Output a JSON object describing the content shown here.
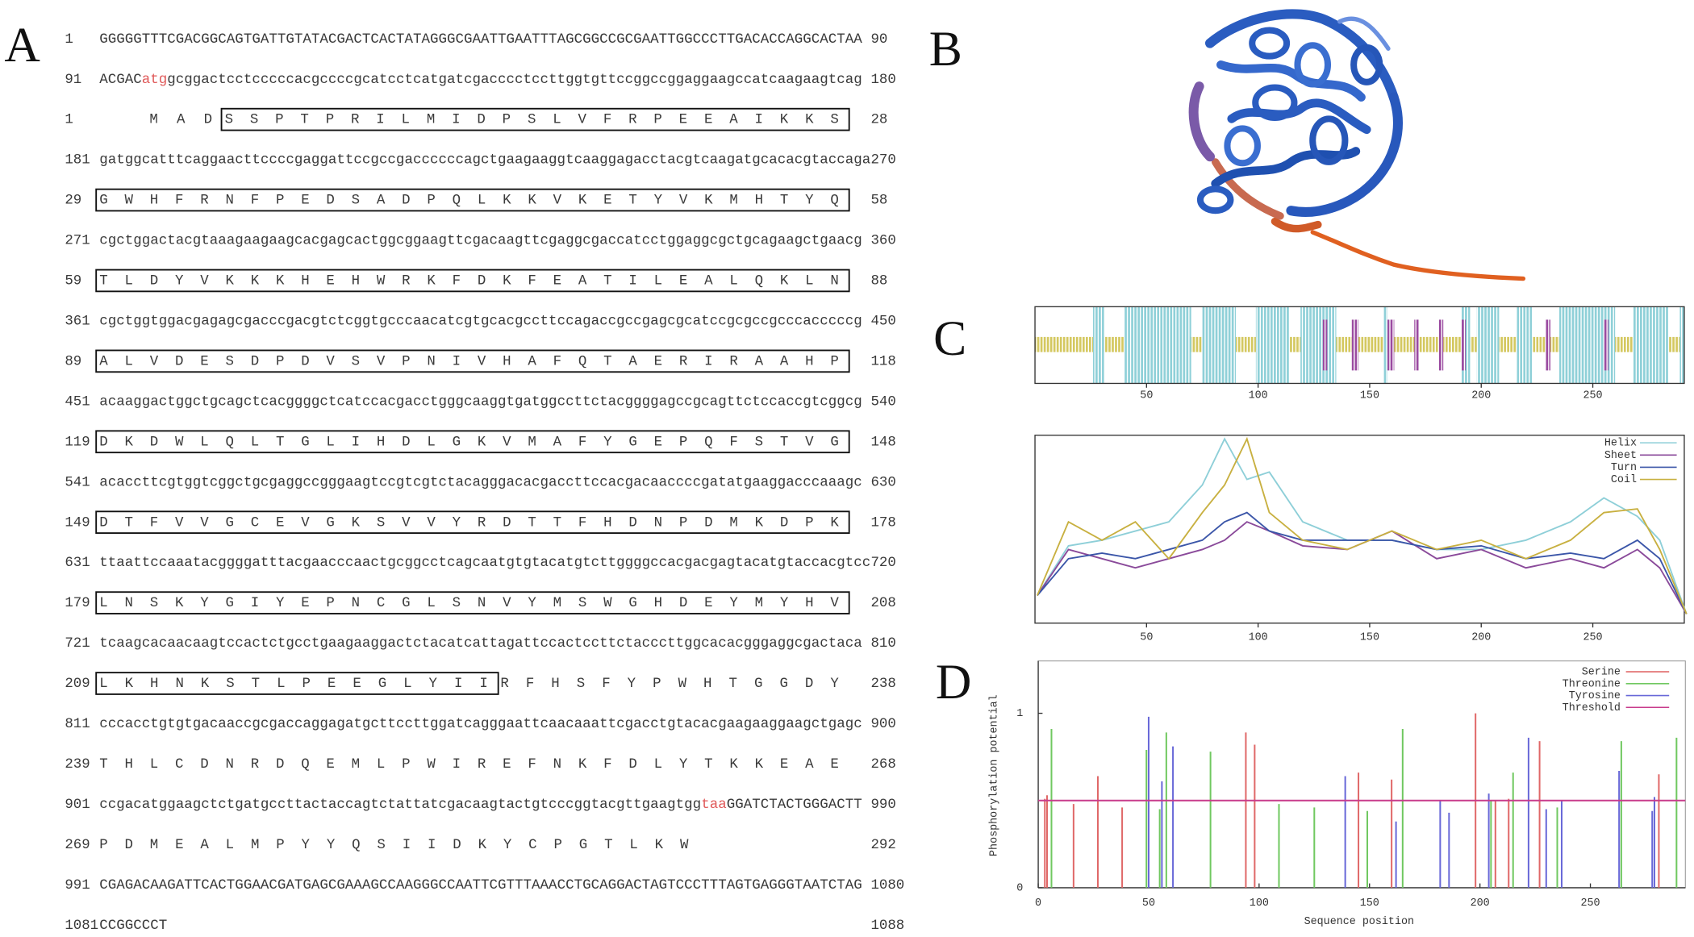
{
  "panel_labels": {
    "a": "A",
    "b": "B",
    "c": "C",
    "d": "D"
  },
  "sequence": {
    "lines": [
      {
        "start": 1,
        "parts": [
          {
            "text": "GGGGGTTTCGACGGCAGTGATTGTATACGACTCACTATAGGGCGAATTGAATTTAGCGGCCGCGAATTGGCCCTTGACACCAGGCACTAA"
          }
        ],
        "end": 90
      },
      {
        "start": 91,
        "parts": [
          {
            "text": "ACGAC"
          },
          {
            "text": "atg",
            "color": "#e05a5a"
          },
          {
            "text": "gcggactcctcccccacgccccgcatcctcatgatcgacccctccttggtgttccggccggaggaagccatcaagaagtcag"
          }
        ],
        "end": 180
      },
      {
        "start": 1,
        "pre": "M A D",
        "boxed": "S S P T P R I L M I D P S L V F R P E E A I K K S",
        "end": 28
      },
      {
        "start": 181,
        "parts": [
          {
            "text": "gatggcatttcaggaacttccccgaggattccgccgaccccccagctgaagaaggtcaaggagacctacgtcaagatgcacacgtaccaga"
          }
        ],
        "end": 270
      },
      {
        "start": 29,
        "boxed": "G W H F R N F P E D S A D P Q L K K V K E T Y V K M H T Y Q",
        "end": 58
      },
      {
        "start": 271,
        "parts": [
          {
            "text": "cgctggactacgtaaagaagaagcacgagcactggcggaagttcgacaagttcgaggcgaccatcctggaggcgctgcagaagctgaacg"
          }
        ],
        "end": 360
      },
      {
        "start": 59,
        "boxed": "T L D Y V K K K H E H W R K F D K F E A T I L E A L Q K L N",
        "end": 88
      },
      {
        "start": 361,
        "parts": [
          {
            "text": "cgctggtggacgagagcgacccgacgtctcggtgcccaacatcgtgcacgccttccagaccgccgagcgcatccgcgccgcccacccccg"
          }
        ],
        "end": 450
      },
      {
        "start": 89,
        "boxed": "A L V D E S D P D V S V P N I V H A F Q T A E R I R A A H P",
        "end": 118
      },
      {
        "start": 451,
        "parts": [
          {
            "text": "acaaggactggctgcagctcacggggctcatccacgacctgggcaaggtgatggccttctacggggagccgcagttctccaccgtcggcg"
          }
        ],
        "end": 540
      },
      {
        "start": 119,
        "boxed": "D K D W L Q L T G L I H D L G K V M A F Y G E P Q F S T V G",
        "end": 148
      },
      {
        "start": 541,
        "parts": [
          {
            "text": "acaccttcgtggtcggctgcgaggccgggaagtccgtcgtctacagggacacgaccttccacgacaaccccgatatgaaggacccaaagc"
          }
        ],
        "end": 630
      },
      {
        "start": 149,
        "boxed": "D T F V V G C E V G K S V V Y R D T T F H D N P D M K D P K",
        "end": 178
      },
      {
        "start": 631,
        "parts": [
          {
            "text": "ttaattccaaatacggggatttacgaacccaactgcggcctcagcaatgtgtacatgtcttggggccacgacgagtacatgtaccacgtcc"
          }
        ],
        "end": 720
      },
      {
        "start": 179,
        "boxed": "L N S K Y G I Y E P N C G L S N V Y M S W G H D E Y M Y H V",
        "end": 208
      },
      {
        "start": 721,
        "parts": [
          {
            "text": "tcaagcacaacaagtccactctgcctgaagaaggactctacatcattagattccactccttctacccttggcacacgggaggcgactaca"
          }
        ],
        "end": 810
      },
      {
        "start": 209,
        "boxed": "L K H N K S T L P E E G L Y I I",
        "post": "R F H S F Y P W H T G G D Y",
        "end": 238
      },
      {
        "start": 811,
        "parts": [
          {
            "text": "cccacctgtgtgacaaccgcgaccaggagatgcttccttggatcagggaattcaacaaattcgacctgtacacgaagaaggaagctgagc"
          }
        ],
        "end": 900
      },
      {
        "start": 239,
        "pre": "T H L C D N R D Q E M L P W I R E F N K F D L Y T K K E A E",
        "end": 268
      },
      {
        "start": 901,
        "parts": [
          {
            "text": "ccgacatggaagctctgatgccttactaccagtctattatcgacaagtactgtcccggtacgttgaagtgg"
          },
          {
            "text": "taa",
            "color": "#e05a5a"
          },
          {
            "text": "GGATCTACTGGGACTT"
          }
        ],
        "end": 990
      },
      {
        "start": 269,
        "pre": "P D M E A L M P Y Y Q S I I D K Y C P G T L K W",
        "end": 292
      },
      {
        "start": 991,
        "parts": [
          {
            "text": "CGAGACAAGATTCACTGGAACGATGAGCGAAAGCCAAGGGCCAATTCGTTTAAACCTGCAGGACTAGTCCCTTTAGTGAGGGTAATCTAG"
          }
        ],
        "end": 1080
      },
      {
        "start": 1081,
        "parts": [
          {
            "text": "CCGGCCCT"
          }
        ],
        "end": 1088
      }
    ]
  },
  "chart_data": [
    {
      "type": "track",
      "xlim": [
        0,
        291
      ],
      "xticks": [
        50,
        100,
        150,
        200,
        250
      ],
      "helix_color": "#8fd0d8",
      "sheet_color": "#9a4aa0",
      "coil_color": "#d4c860",
      "helix_ranges": [
        [
          26,
          31
        ],
        [
          40,
          70
        ],
        [
          75,
          90
        ],
        [
          99,
          114
        ],
        [
          119,
          135
        ],
        [
          156,
          158
        ],
        [
          191,
          195
        ],
        [
          198,
          208
        ],
        [
          216,
          223
        ],
        [
          235,
          260
        ],
        [
          268,
          284
        ],
        [
          289,
          291
        ]
      ],
      "sheet_ranges": [
        [
          129,
          131
        ],
        [
          142,
          145
        ],
        [
          158,
          161
        ],
        [
          170,
          172
        ],
        [
          181,
          183
        ],
        [
          191,
          193
        ],
        [
          229,
          231
        ],
        [
          255,
          257
        ]
      ]
    },
    {
      "type": "line",
      "xlim": [
        0,
        291
      ],
      "ylim": [
        0,
        1.02
      ],
      "xticks": [
        50,
        100,
        150,
        200,
        250
      ],
      "legend": "upper right",
      "x": [
        1,
        15,
        30,
        45,
        60,
        75,
        85,
        95,
        105,
        120,
        140,
        160,
        180,
        200,
        220,
        240,
        255,
        270,
        280,
        292
      ],
      "series": [
        {
          "name": "Helix",
          "color": "#8ecfd8",
          "values": [
            0.15,
            0.42,
            0.45,
            0.5,
            0.55,
            0.75,
            1.0,
            0.78,
            0.82,
            0.55,
            0.45,
            0.45,
            0.4,
            0.4,
            0.45,
            0.55,
            0.68,
            0.58,
            0.45,
            0.05
          ]
        },
        {
          "name": "Sheet",
          "color": "#8a4a9a",
          "values": [
            0.15,
            0.4,
            0.35,
            0.3,
            0.35,
            0.4,
            0.45,
            0.55,
            0.5,
            0.42,
            0.4,
            0.5,
            0.35,
            0.4,
            0.3,
            0.35,
            0.3,
            0.4,
            0.3,
            0.05
          ]
        },
        {
          "name": "Turn",
          "color": "#3a55a8",
          "values": [
            0.15,
            0.35,
            0.38,
            0.35,
            0.4,
            0.45,
            0.55,
            0.6,
            0.5,
            0.45,
            0.45,
            0.45,
            0.4,
            0.42,
            0.35,
            0.38,
            0.35,
            0.45,
            0.35,
            0.05
          ]
        },
        {
          "name": "Coil",
          "color": "#c8b040",
          "values": [
            0.15,
            0.55,
            0.45,
            0.55,
            0.35,
            0.6,
            0.75,
            1.0,
            0.6,
            0.45,
            0.4,
            0.5,
            0.4,
            0.45,
            0.35,
            0.45,
            0.6,
            0.62,
            0.4,
            0.05
          ]
        }
      ]
    },
    {
      "type": "stem",
      "xlim": [
        0,
        293
      ],
      "ylim": [
        0,
        1.3
      ],
      "xticks": [
        0,
        50,
        100,
        150,
        200,
        250
      ],
      "yticks": [
        0,
        1
      ],
      "legend": "upper right",
      "xlabel": "Sequence position",
      "ylabel": "Phosphorylation potential",
      "series": [
        {
          "name": "Serine",
          "color": "#e06868",
          "x": [
            3,
            4,
            16,
            27,
            38,
            94,
            98,
            145,
            160,
            198,
            207,
            213,
            227,
            281
          ],
          "values": [
            0.51,
            0.53,
            0.48,
            0.64,
            0.46,
            0.89,
            0.82,
            0.66,
            0.62,
            1.0,
            0.5,
            0.51,
            0.84,
            0.65
          ]
        },
        {
          "name": "Threonine",
          "color": "#70c860",
          "x": [
            6,
            49,
            55,
            58,
            78,
            109,
            125,
            149,
            165,
            205,
            215,
            235,
            264,
            289
          ],
          "values": [
            0.91,
            0.79,
            0.45,
            0.89,
            0.78,
            0.48,
            0.46,
            0.44,
            0.91,
            0.5,
            0.66,
            0.46,
            0.84,
            0.86
          ]
        },
        {
          "name": "Tyrosine",
          "color": "#6868d8",
          "x": [
            50,
            56,
            61,
            139,
            162,
            182,
            186,
            204,
            222,
            230,
            237,
            263,
            278,
            279
          ],
          "values": [
            0.98,
            0.61,
            0.81,
            0.64,
            0.38,
            0.5,
            0.43,
            0.54,
            0.86,
            0.45,
            0.5,
            0.67,
            0.44,
            0.52
          ]
        }
      ],
      "threshold": {
        "name": "Threshold",
        "color": "#c83c8c",
        "value": 0.5
      }
    }
  ]
}
